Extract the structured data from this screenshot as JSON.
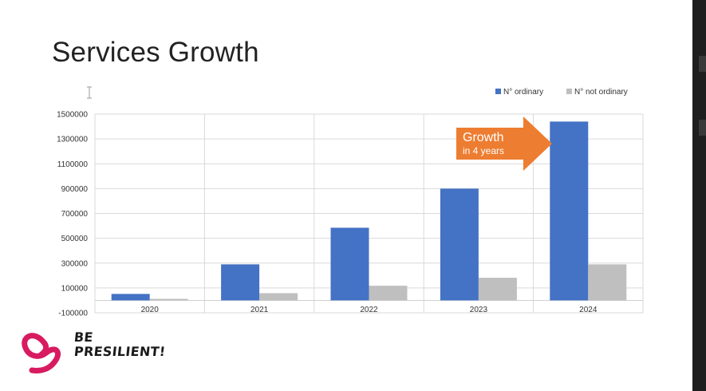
{
  "slide": {
    "title": "Services Growth"
  },
  "callout": {
    "title": "Growth",
    "subtitle": "in 4 years",
    "color": "#ED7D31"
  },
  "logo": {
    "line1": "BE",
    "line2": "PRESILIENT!",
    "ribbon_color": "#D81B60"
  },
  "chart_data": {
    "type": "bar",
    "categories": [
      "2020",
      "2021",
      "2022",
      "2023",
      "2024"
    ],
    "series": [
      {
        "name": "N° ordinary",
        "color": "#4472C4",
        "values": [
          52000,
          290000,
          585000,
          900000,
          1440000
        ]
      },
      {
        "name": "N° not ordinary",
        "color": "#BFBFBF",
        "values": [
          12000,
          58000,
          118000,
          182000,
          290000
        ]
      }
    ],
    "yticks": [
      -100000,
      100000,
      300000,
      500000,
      700000,
      900000,
      1100000,
      1300000,
      1500000
    ],
    "ylim": [
      -100000,
      1500000
    ],
    "title": "",
    "xlabel": "",
    "ylabel": "",
    "grid": true,
    "legend_position": "top-right"
  }
}
